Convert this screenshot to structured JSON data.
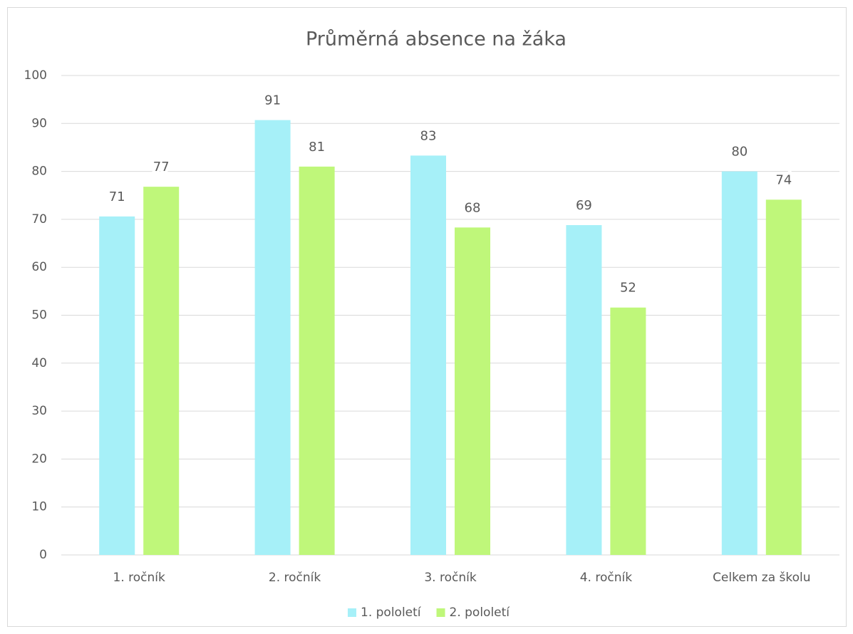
{
  "chart_data": {
    "type": "bar",
    "title": "Průměrná absence na žáka",
    "categories": [
      "1. ročník",
      "2. ročník",
      "3. ročník",
      "4. ročník",
      "Celkem za školu"
    ],
    "series": [
      {
        "name": "1. pololetí",
        "color": "#a6f0f8",
        "values": [
          70.6,
          90.7,
          83.3,
          68.8,
          80.0
        ],
        "value_labels": [
          "71",
          "91",
          "83",
          "69",
          "80"
        ]
      },
      {
        "name": "2. pololetí",
        "color": "#bff77a",
        "values": [
          76.8,
          81.0,
          68.3,
          51.6,
          74.1
        ],
        "value_labels": [
          "77",
          "81",
          "68",
          "52",
          "74"
        ]
      }
    ],
    "ylim": [
      0,
      100
    ],
    "yticks": [
      0,
      10,
      20,
      30,
      40,
      50,
      60,
      70,
      80,
      90,
      100
    ],
    "grid": true,
    "legend": "bottom"
  }
}
